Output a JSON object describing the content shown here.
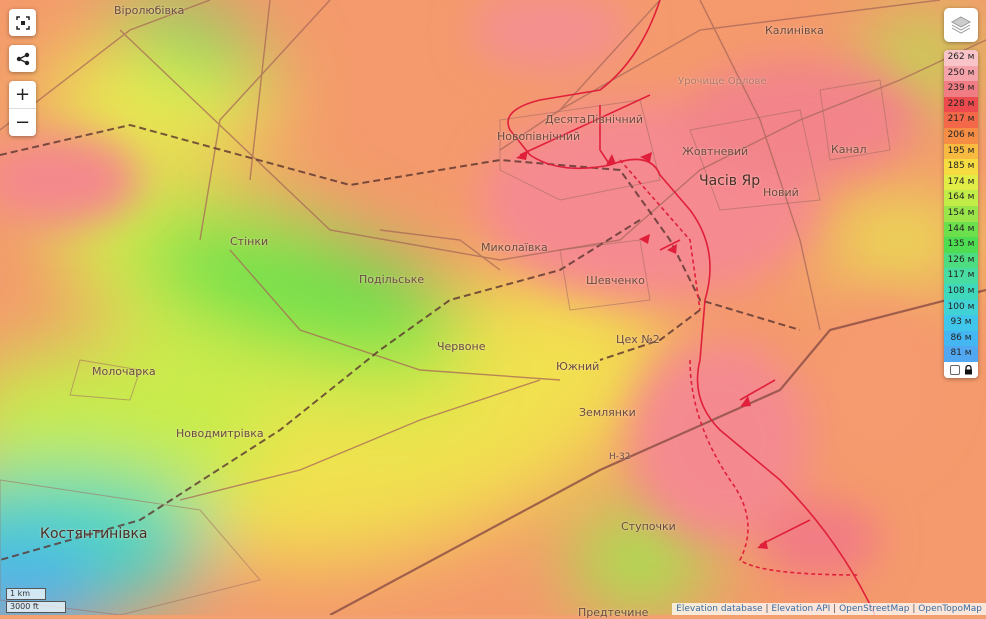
{
  "controls": {
    "fullscreen_icon": "fullscreen-icon",
    "share_icon": "share-icon",
    "zoom_in": "+",
    "zoom_out": "−",
    "layers_icon": "layers-icon"
  },
  "legend": {
    "entries": [
      {
        "label": "262 м",
        "color": "#f8c4c8"
      },
      {
        "label": "250 м",
        "color": "#f4a3aa"
      },
      {
        "label": "239 м",
        "color": "#f07c84"
      },
      {
        "label": "228 м",
        "color": "#ec4a4c"
      },
      {
        "label": "217 м",
        "color": "#f26848"
      },
      {
        "label": "206 м",
        "color": "#f58e44"
      },
      {
        "label": "195 м",
        "color": "#f8ba40"
      },
      {
        "label": "185 м",
        "color": "#f6dc40"
      },
      {
        "label": "174 м",
        "color": "#e2ec46"
      },
      {
        "label": "164 м",
        "color": "#c2ec48"
      },
      {
        "label": "154 м",
        "color": "#9ae64a"
      },
      {
        "label": "144 м",
        "color": "#6ce04c"
      },
      {
        "label": "135 м",
        "color": "#4edc52"
      },
      {
        "label": "126 м",
        "color": "#4edc80"
      },
      {
        "label": "117 м",
        "color": "#48dca2"
      },
      {
        "label": "108 м",
        "color": "#40d8bc"
      },
      {
        "label": "100 м",
        "color": "#40d2d4"
      },
      {
        "label": "93 м",
        "color": "#40c6ea"
      },
      {
        "label": "86 м",
        "color": "#44b6f2"
      },
      {
        "label": "81 м",
        "color": "#52a8f0"
      }
    ],
    "lock_icon": "lock-icon"
  },
  "scale": {
    "metric": "1 km",
    "imperial": "3000 ft"
  },
  "attribution": [
    "Elevation database",
    "Elevation API",
    "OpenStreetMap",
    "OpenTopoMap"
  ],
  "places": {
    "virolyubivka": "Віролюбівка",
    "kalynivka": "Калинівка",
    "urochyshche": "Урочище Орлове",
    "desiata": "Десята",
    "pivnichnyi": "Північний",
    "novopivnichnyi": "Новопівнічний",
    "zhovtnevyi": "Жовтневий",
    "chasiv_yar": "Часів Яр",
    "novyi": "Новий",
    "kanal": "Канал",
    "stinky": "Стінки",
    "mykolaivka": "Миколаївка",
    "podilske": "Подільське",
    "shevchenko": "Шевченко",
    "chervone": "Червоне",
    "tsekh2": "Цех №2",
    "yuzhnyi": "Южний",
    "zemlianky": "Землянки",
    "road_h32": "Н-32",
    "molocharka": "Молочарка",
    "novodmytrivka": "Новодмитрівка",
    "kostiantynivka": "Костянтинівка",
    "stupochky": "Ступочки",
    "predtechyne": "Предтечине"
  },
  "colors": {
    "front_line": "#e0203a",
    "road": "#a06050",
    "railway": "#6a4038"
  }
}
